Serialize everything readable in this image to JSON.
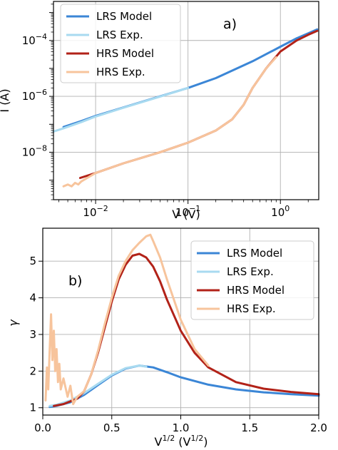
{
  "chart_data": [
    {
      "panel": "a)",
      "type": "line",
      "xscale": "log",
      "yscale": "log",
      "xlabel": "V (V)",
      "ylabel": "I (A)",
      "xlim": [
        0.0035,
        2.6
      ],
      "ylim": [
        2e-10,
        0.0025
      ],
      "grid": true,
      "legend_position": "top-left",
      "x_ticks": [
        {
          "value": 0.01,
          "base": "10",
          "exp": "−2"
        },
        {
          "value": 0.1,
          "base": "10",
          "exp": "−1"
        },
        {
          "value": 1,
          "base": "10",
          "exp": "0"
        }
      ],
      "y_ticks": [
        {
          "value": 1e-08,
          "base": "10",
          "exp": "−8"
        },
        {
          "value": 1e-06,
          "base": "10",
          "exp": "−6"
        },
        {
          "value": 0.0001,
          "base": "10",
          "exp": "−4"
        }
      ],
      "series": [
        {
          "name": "LRS Model",
          "color": "#3b86d6",
          "width": 3,
          "x": [
            0.0045,
            0.007,
            0.01,
            0.02,
            0.05,
            0.1,
            0.2,
            0.5,
            1.0,
            1.5,
            2.0,
            2.5
          ],
          "y": [
            8e-08,
            1.3e-07,
            2e-07,
            4e-07,
            1e-06,
            2e-06,
            4.5e-06,
            1.8e-05,
            6e-05,
            0.00012,
            0.00018,
            0.00025
          ]
        },
        {
          "name": "LRS Exp.",
          "color": "#a8daf0",
          "width": 3,
          "x": [
            0.0035,
            0.0045,
            0.007,
            0.01,
            0.02,
            0.05,
            0.1
          ],
          "y": [
            5.5e-08,
            7.2e-08,
            1.2e-07,
            1.9e-07,
            3.9e-07,
            9.8e-07,
            2e-06
          ]
        },
        {
          "name": "HRS Model",
          "color": "#b22218",
          "width": 3,
          "x": [
            0.0068,
            0.01,
            0.02,
            0.05,
            0.1,
            0.2,
            0.3,
            0.4,
            0.5,
            0.7,
            1.0,
            1.5,
            2.0,
            2.5
          ],
          "y": [
            1.2e-09,
            1.8e-09,
            4e-09,
            1e-08,
            2.2e-08,
            6e-08,
            1.5e-07,
            5e-07,
            2e-06,
            1e-05,
            4e-05,
            0.0001,
            0.00016,
            0.00022
          ]
        },
        {
          "name": "HRS Exp.",
          "color": "#f7c49c",
          "width": 3,
          "x": [
            0.0045,
            0.005,
            0.0055,
            0.006,
            0.0065,
            0.007,
            0.01,
            0.02,
            0.05,
            0.1,
            0.2,
            0.3,
            0.4,
            0.5,
            0.7,
            0.9
          ],
          "y": [
            6e-10,
            7e-10,
            6e-10,
            8e-10,
            7e-10,
            9e-10,
            1.8e-09,
            4e-09,
            1e-08,
            2.2e-08,
            6e-08,
            1.5e-07,
            5e-07,
            2e-06,
            1e-05,
            2.5e-05
          ]
        }
      ]
    },
    {
      "panel": "b)",
      "type": "line",
      "xscale": "linear",
      "yscale": "linear",
      "xlabel": "V^1/2 (V^1/2)",
      "xlabel_parts": [
        "V",
        "1/2",
        " (V",
        "1/2",
        ")"
      ],
      "ylabel": "γ",
      "xlim": [
        0,
        2.0
      ],
      "ylim": [
        0.8,
        5.9
      ],
      "grid": true,
      "legend_position": "top-right",
      "x_ticks": [
        0.0,
        0.5,
        1.0,
        1.5,
        2.0
      ],
      "x_tick_labels": [
        "0.0",
        "0.5",
        "1.0",
        "1.5",
        "2.0"
      ],
      "y_ticks": [
        1,
        2,
        3,
        4,
        5
      ],
      "y_tick_labels": [
        "1",
        "2",
        "3",
        "4",
        "5"
      ],
      "series": [
        {
          "name": "LRS Model",
          "color": "#3b86d6",
          "width": 3,
          "x": [
            0.05,
            0.1,
            0.2,
            0.3,
            0.4,
            0.5,
            0.6,
            0.7,
            0.8,
            0.9,
            1.0,
            1.2,
            1.4,
            1.6,
            1.8,
            2.0
          ],
          "y": [
            1.02,
            1.05,
            1.15,
            1.35,
            1.62,
            1.88,
            2.07,
            2.15,
            2.1,
            1.97,
            1.83,
            1.63,
            1.5,
            1.42,
            1.37,
            1.33
          ]
        },
        {
          "name": "LRS Exp.",
          "color": "#a8daf0",
          "width": 3,
          "x": [
            0.05,
            0.1,
            0.2,
            0.3,
            0.4,
            0.5,
            0.6,
            0.7,
            0.75
          ],
          "y": [
            1.05,
            1.08,
            1.2,
            1.4,
            1.65,
            1.9,
            2.08,
            2.15,
            2.12
          ]
        },
        {
          "name": "HRS Model",
          "color": "#b22218",
          "width": 3,
          "x": [
            0.08,
            0.15,
            0.25,
            0.3,
            0.35,
            0.4,
            0.45,
            0.5,
            0.55,
            0.6,
            0.65,
            0.7,
            0.75,
            0.8,
            0.85,
            0.9,
            1.0,
            1.1,
            1.2,
            1.4,
            1.6,
            1.8,
            2.0
          ],
          "y": [
            1.05,
            1.1,
            1.25,
            1.45,
            1.9,
            2.5,
            3.2,
            3.9,
            4.5,
            4.9,
            5.15,
            5.2,
            5.1,
            4.85,
            4.45,
            3.95,
            3.1,
            2.5,
            2.1,
            1.7,
            1.52,
            1.43,
            1.37
          ]
        },
        {
          "name": "HRS Exp.",
          "color": "#f7c49c",
          "width": 3,
          "x": [
            0.02,
            0.03,
            0.04,
            0.05,
            0.06,
            0.07,
            0.08,
            0.09,
            0.1,
            0.11,
            0.12,
            0.13,
            0.15,
            0.18,
            0.2,
            0.22,
            0.25,
            0.3,
            0.35,
            0.4,
            0.45,
            0.5,
            0.55,
            0.6,
            0.65,
            0.7,
            0.75,
            0.78,
            0.8,
            0.85,
            0.9,
            1.0,
            1.1,
            1.2
          ],
          "y": [
            1.2,
            2.1,
            1.5,
            2.6,
            3.55,
            2.3,
            3.1,
            2.0,
            2.6,
            1.7,
            2.2,
            1.5,
            1.8,
            1.3,
            1.6,
            1.1,
            1.3,
            1.45,
            1.9,
            2.55,
            3.3,
            4.0,
            4.6,
            5.0,
            5.3,
            5.5,
            5.68,
            5.72,
            5.55,
            5.1,
            4.5,
            3.4,
            2.6,
            2.15
          ]
        }
      ]
    }
  ]
}
